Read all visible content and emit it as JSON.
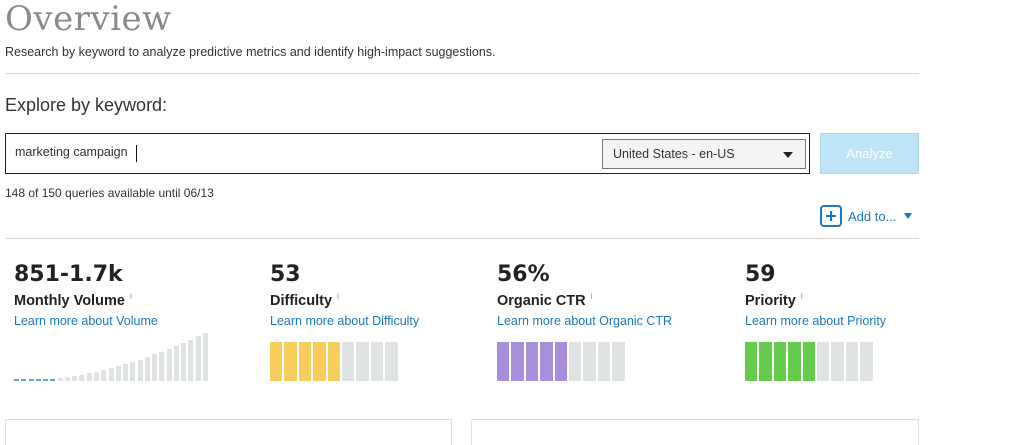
{
  "header": {
    "title": "Overview",
    "subtitle": "Research by keyword to analyze predictive metrics and identify high-impact suggestions."
  },
  "explore": {
    "heading": "Explore by keyword:",
    "search_value": "marketing campaign",
    "locale": "United States - en-US",
    "analyze_label": "Analyze",
    "queries_text": "148 of 150 queries available until 06/13",
    "add_to_label": "Add to..."
  },
  "metrics": [
    {
      "value": "851-1.7k",
      "label": "Monthly Volume",
      "info": "i",
      "link": "Learn more about Volume"
    },
    {
      "value": "53",
      "label": "Difficulty",
      "info": "i",
      "link": "Learn more about Difficulty",
      "filled": 5,
      "total": 9,
      "color": "#f7cd5e"
    },
    {
      "value": "56%",
      "label": "Organic CTR",
      "info": "i",
      "link": "Learn more about Organic CTR",
      "filled": 5,
      "total": 9,
      "color": "#a78fdb"
    },
    {
      "value": "59",
      "label": "Priority",
      "info": "i",
      "link": "Learn more about Priority",
      "filled": 5,
      "total": 9,
      "color": "#63cc4a"
    }
  ],
  "colors": {
    "empty_segment": "#dfe3e3",
    "volume_active": "#5fa8d3",
    "volume_inactive": "#dfe3e3",
    "link": "#1a78c2"
  },
  "volume_bars": {
    "count": 27,
    "active": 6
  }
}
